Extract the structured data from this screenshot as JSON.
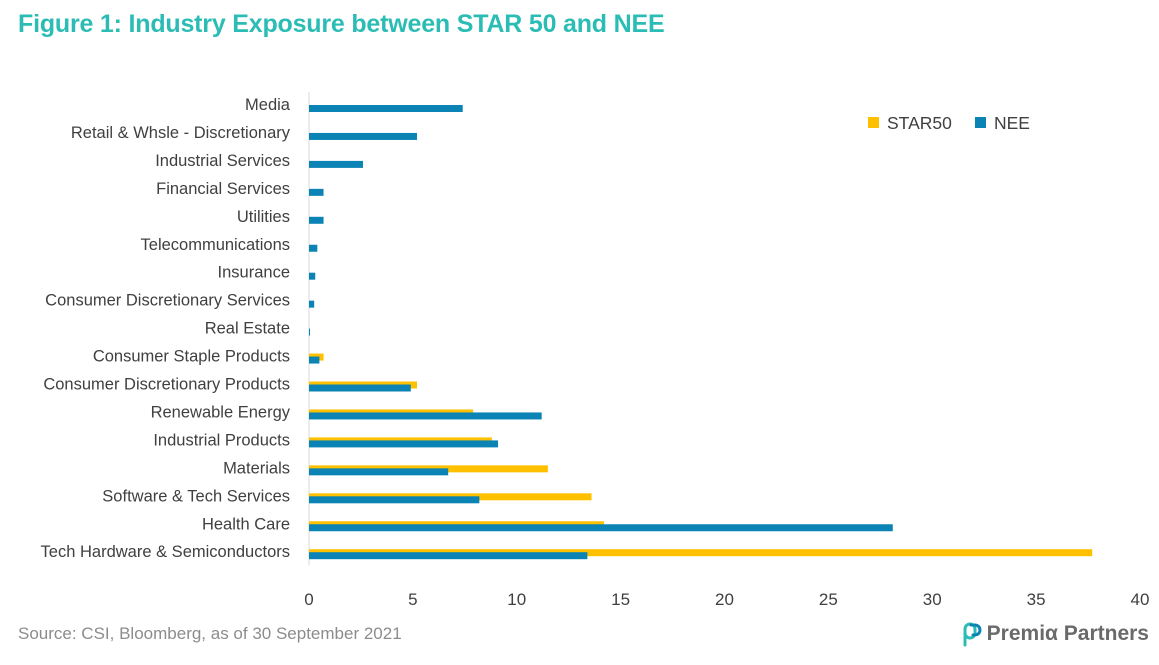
{
  "title": "Figure 1: Industry Exposure between STAR 50 and NEE",
  "source": "Source: CSI, Bloomberg, as of 30 September 2021",
  "brand": {
    "name": "Premiα Partners",
    "logo_icon": "premia-logo-icon"
  },
  "colors": {
    "title": "#2bbdb5",
    "STAR50": "#ffc000",
    "NEE": "#0b84b5"
  },
  "chart_data": {
    "type": "bar",
    "orientation": "horizontal",
    "categories": [
      "Media",
      "Retail & Whsle - Discretionary",
      "Industrial Services",
      "Financial Services",
      "Utilities",
      "Telecommunications",
      "Insurance",
      "Consumer Discretionary Services",
      "Real Estate",
      "Consumer Staple Products",
      "Consumer Discretionary Products",
      "Renewable Energy",
      "Industrial Products",
      "Materials",
      "Software & Tech Services",
      "Health Care",
      "Tech Hardware & Semiconductors"
    ],
    "series": [
      {
        "name": "STAR50",
        "values": [
          0,
          0,
          0,
          0,
          0,
          0,
          0,
          0,
          0,
          0.7,
          5.2,
          7.9,
          8.8,
          11.5,
          13.6,
          14.2,
          37.7
        ]
      },
      {
        "name": "NEE",
        "values": [
          7.4,
          5.2,
          2.6,
          0.7,
          0.7,
          0.4,
          0.3,
          0.25,
          0.05,
          0.5,
          4.9,
          11.2,
          9.1,
          6.7,
          8.2,
          28.1,
          13.4
        ]
      }
    ],
    "xlim": [
      0,
      40
    ],
    "xticks": [
      0,
      5,
      10,
      15,
      20,
      25,
      30,
      35,
      40
    ],
    "grid": false,
    "legend": "top-right",
    "xlabel": "",
    "ylabel": ""
  }
}
